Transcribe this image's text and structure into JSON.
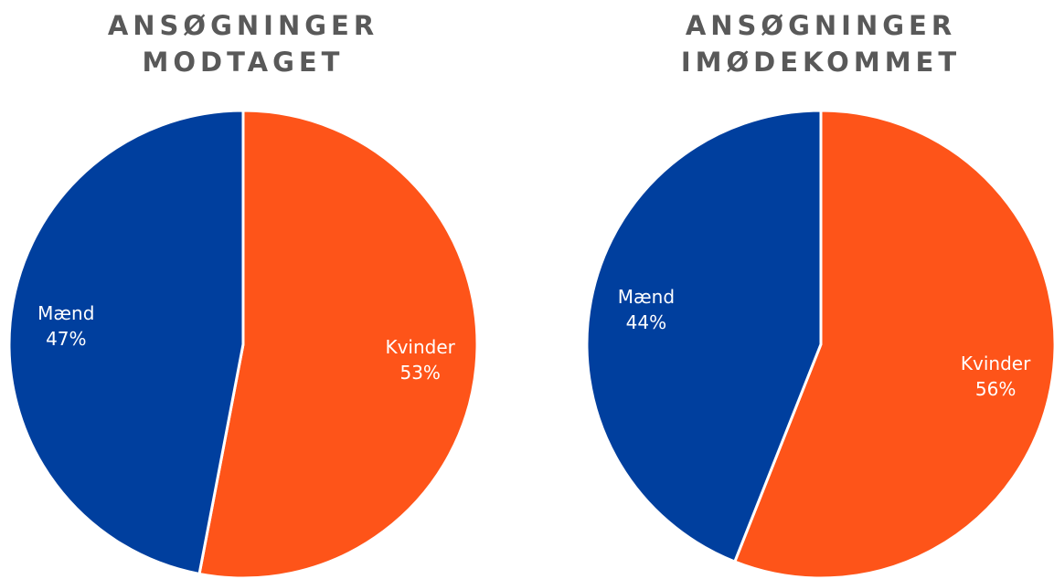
{
  "chart_data": [
    {
      "type": "pie",
      "title": "ANSØGNINGER MODTAGET",
      "categories": [
        "Kvinder",
        "Mænd"
      ],
      "values": [
        53,
        47
      ],
      "value_labels": [
        "53%",
        "47%"
      ],
      "colors": [
        "#fe5419",
        "#003f9e"
      ]
    },
    {
      "type": "pie",
      "title": "ANSØGNINGER IMØDEKOMMET",
      "categories": [
        "Kvinder",
        "Mænd"
      ],
      "values": [
        56,
        44
      ],
      "value_labels": [
        "56%",
        "44%"
      ],
      "colors": [
        "#fe5419",
        "#003f9e"
      ]
    }
  ]
}
